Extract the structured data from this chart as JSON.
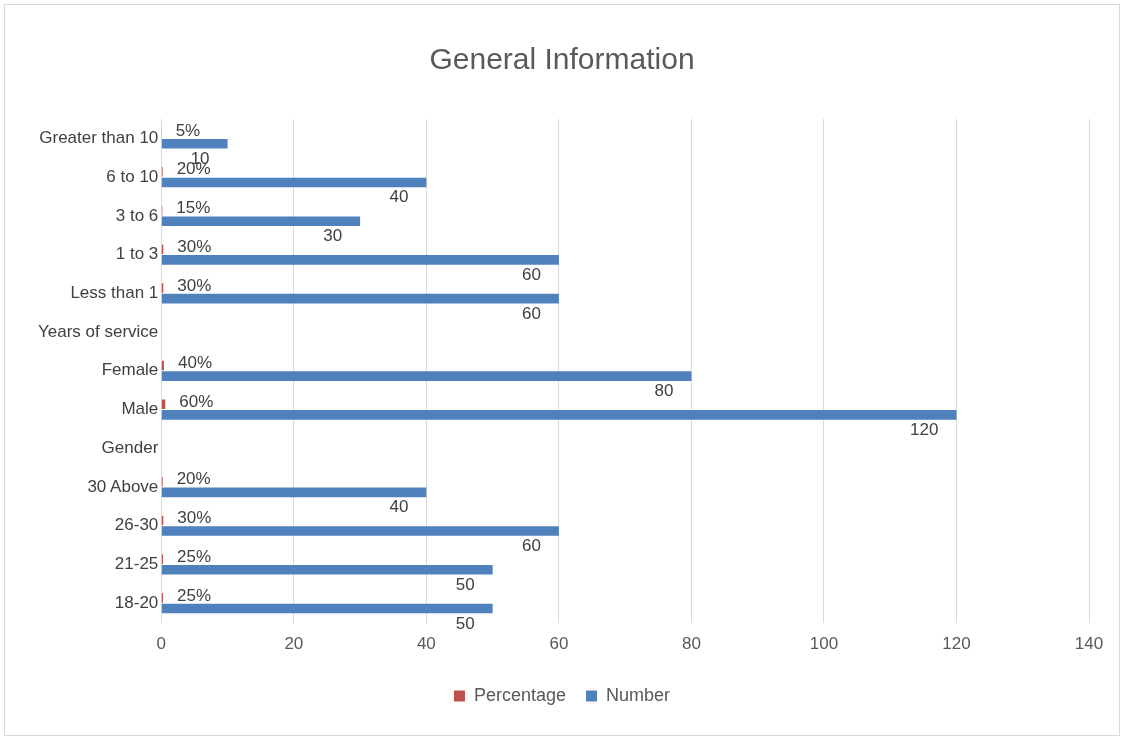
{
  "chart_data": {
    "type": "bar",
    "orientation": "horizontal",
    "title": "General Information",
    "categories": [
      "Greater than 10",
      "6 to 10",
      "3 to 6",
      "1 to 3",
      "Less than 1",
      "Years of service",
      "Female",
      "Male",
      "Gender",
      "30 Above",
      "26-30",
      "21-25",
      "18-20"
    ],
    "series": [
      {
        "name": "Percentage",
        "color": "#c0504d",
        "values": [
          0.05,
          0.2,
          0.15,
          0.3,
          0.3,
          null,
          0.4,
          0.6,
          null,
          0.2,
          0.3,
          0.25,
          0.25
        ],
        "value_labels": [
          "5%",
          "20%",
          "15%",
          "30%",
          "30%",
          null,
          "40%",
          "60%",
          null,
          "20%",
          "30%",
          "25%",
          "25%"
        ]
      },
      {
        "name": "Number",
        "color": "#4f81bd",
        "values": [
          10,
          40,
          30,
          60,
          60,
          null,
          80,
          120,
          null,
          40,
          60,
          50,
          50
        ],
        "value_labels": [
          "10",
          "40",
          "30",
          "60",
          "60",
          null,
          "80",
          "120",
          null,
          "40",
          "60",
          "50",
          "50"
        ]
      }
    ],
    "xlim": [
      0,
      140
    ],
    "xticks": [
      0,
      20,
      40,
      60,
      80,
      100,
      120,
      140
    ],
    "grid": "x",
    "legend": "bottom"
  }
}
